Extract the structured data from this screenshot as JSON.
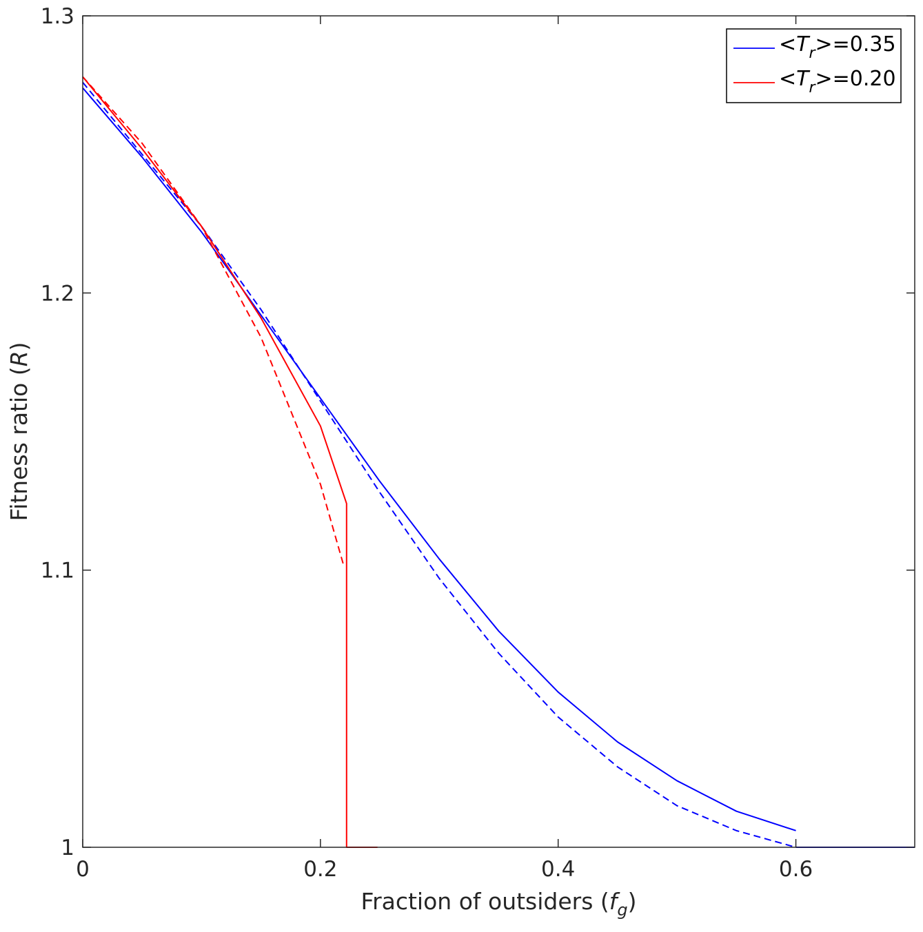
{
  "chart_data": {
    "type": "line",
    "xlabel": {
      "main": "Fraction of outsiders (",
      "italic": "f",
      "sub": "g",
      "close": ")"
    },
    "ylabel": {
      "main": "Fitness ratio (",
      "italic": "R",
      "close": ")"
    },
    "xlim": [
      0,
      0.7
    ],
    "ylim": [
      1.0,
      1.3
    ],
    "xticks": [
      {
        "v": 0,
        "label": "0"
      },
      {
        "v": 0.2,
        "label": "0.2"
      },
      {
        "v": 0.4,
        "label": "0.4"
      },
      {
        "v": 0.6,
        "label": "0.6"
      }
    ],
    "yticks": [
      {
        "v": 1.0,
        "label": "1"
      },
      {
        "v": 1.1,
        "label": "1.1"
      },
      {
        "v": 1.2,
        "label": "1.2"
      },
      {
        "v": 1.3,
        "label": "1.3"
      }
    ],
    "legend": {
      "position": "top-right",
      "entries": [
        {
          "pre": "<",
          "italic": "T",
          "sub": "r",
          "post": ">=0.35",
          "color": "#0000ff"
        },
        {
          "pre": "<",
          "italic": "T",
          "sub": "r",
          "post": ">=0.20",
          "color": "#ff0000"
        }
      ]
    },
    "series": [
      {
        "color": "#0000ff",
        "style": "solid",
        "points": [
          [
            0,
            1.274
          ],
          [
            0.05,
            1.249
          ],
          [
            0.1,
            1.222
          ],
          [
            0.15,
            1.192
          ],
          [
            0.2,
            1.162
          ],
          [
            0.25,
            1.132
          ],
          [
            0.3,
            1.104
          ],
          [
            0.35,
            1.078
          ],
          [
            0.4,
            1.056
          ],
          [
            0.45,
            1.038
          ],
          [
            0.5,
            1.024
          ],
          [
            0.55,
            1.013
          ],
          [
            0.6,
            1.006
          ]
        ]
      },
      {
        "color": "#0000ff",
        "style": "dashed",
        "points": [
          [
            0,
            1.276
          ],
          [
            0.05,
            1.25
          ],
          [
            0.1,
            1.224
          ],
          [
            0.15,
            1.194
          ],
          [
            0.2,
            1.161
          ],
          [
            0.25,
            1.128
          ],
          [
            0.3,
            1.097
          ],
          [
            0.35,
            1.07
          ],
          [
            0.4,
            1.047
          ],
          [
            0.45,
            1.029
          ],
          [
            0.5,
            1.015
          ],
          [
            0.55,
            1.006
          ],
          [
            0.6,
            1.0
          ]
        ]
      },
      {
        "color": "#0000ff",
        "style": "solid",
        "points": [
          [
            0.6,
            1.0
          ],
          [
            0.7,
            1.0
          ]
        ]
      },
      {
        "color": "#ff0000",
        "style": "solid",
        "points": [
          [
            0,
            1.278
          ],
          [
            0.05,
            1.252
          ],
          [
            0.1,
            1.224
          ],
          [
            0.15,
            1.191
          ],
          [
            0.2,
            1.152
          ],
          [
            0.222,
            1.124
          ],
          [
            0.222,
            1.0
          ],
          [
            0.248,
            1.0
          ]
        ]
      },
      {
        "color": "#ff0000",
        "style": "dashed",
        "points": [
          [
            0,
            1.278
          ],
          [
            0.05,
            1.254
          ],
          [
            0.1,
            1.224
          ],
          [
            0.15,
            1.184
          ],
          [
            0.2,
            1.131
          ],
          [
            0.22,
            1.101
          ]
        ]
      }
    ]
  }
}
